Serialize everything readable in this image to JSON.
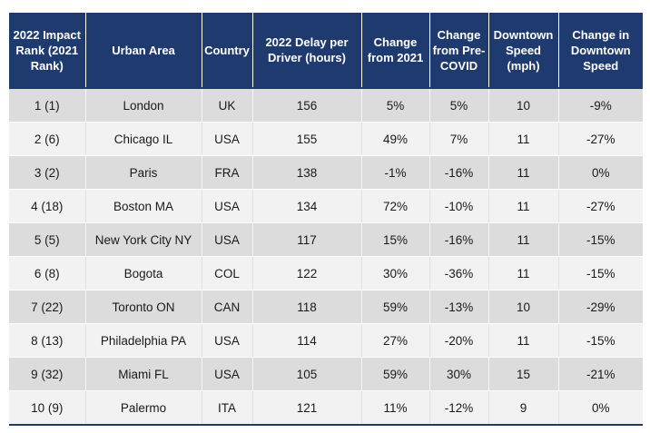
{
  "table": {
    "headers": [
      "2022 Impact Rank (2021 Rank)",
      "Urban Area",
      "Country",
      "2022 Delay per Driver (hours)",
      "Change from 2021",
      "Change from Pre-COVID",
      "Downtown Speed (mph)",
      "Change in Downtown Speed"
    ],
    "rows": [
      [
        "1 (1)",
        "London",
        "UK",
        "156",
        "5%",
        "5%",
        "10",
        "-9%"
      ],
      [
        "2 (6)",
        "Chicago IL",
        "USA",
        "155",
        "49%",
        "7%",
        "11",
        "-27%"
      ],
      [
        "3 (2)",
        "Paris",
        "FRA",
        "138",
        "-1%",
        "-16%",
        "11",
        "0%"
      ],
      [
        "4 (18)",
        "Boston MA",
        "USA",
        "134",
        "72%",
        "-10%",
        "11",
        "-27%"
      ],
      [
        "5 (5)",
        "New York City NY",
        "USA",
        "117",
        "15%",
        "-16%",
        "11",
        "-15%"
      ],
      [
        "6 (8)",
        "Bogota",
        "COL",
        "122",
        "30%",
        "-36%",
        "11",
        "-15%"
      ],
      [
        "7 (22)",
        "Toronto ON",
        "CAN",
        "118",
        "59%",
        "-13%",
        "10",
        "-29%"
      ],
      [
        "8 (13)",
        "Philadelphia PA",
        "USA",
        "114",
        "27%",
        "-20%",
        "11",
        "-15%"
      ],
      [
        "9 (32)",
        "Miami FL",
        "USA",
        "105",
        "59%",
        "30%",
        "15",
        "-21%"
      ],
      [
        "10 (9)",
        "Palermo",
        "ITA",
        "121",
        "11%",
        "-12%",
        "9",
        "0%"
      ]
    ]
  },
  "colors": {
    "header_bg": "#1f3a6e",
    "header_text": "#ffffff",
    "row_odd": "#dcdcdc",
    "row_even": "#f2f2f2"
  }
}
